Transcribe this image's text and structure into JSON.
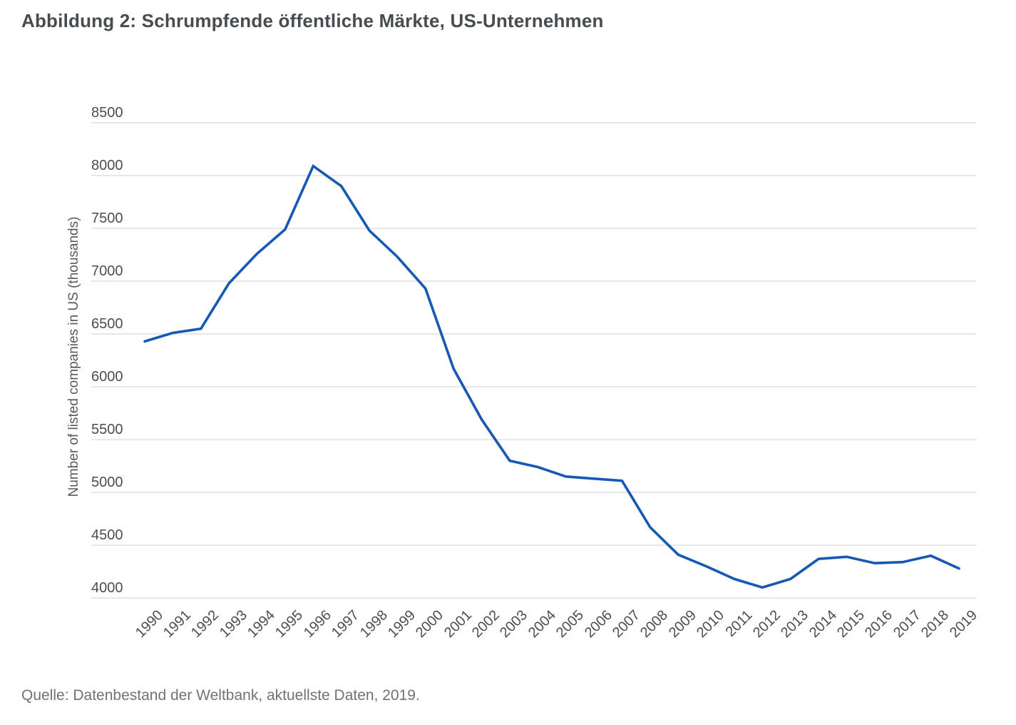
{
  "title": "Abbildung 2: Schrumpfende öffentliche Märkte, US-Unternehmen",
  "source": "Quelle: Datenbestand der Weltbank, aktuellste Daten, 2019.",
  "chart_data": {
    "type": "line",
    "x": [
      1990,
      1991,
      1992,
      1993,
      1994,
      1995,
      1996,
      1997,
      1998,
      1999,
      2000,
      2001,
      2002,
      2003,
      2004,
      2005,
      2006,
      2007,
      2008,
      2009,
      2010,
      2011,
      2012,
      2013,
      2014,
      2015,
      2016,
      2017,
      2018,
      2019
    ],
    "series": [
      {
        "name": "Number of listed companies in US",
        "values": [
          6430,
          6510,
          6550,
          6980,
          7260,
          7490,
          8090,
          7900,
          7480,
          7230,
          6930,
          6170,
          5690,
          5300,
          5240,
          5150,
          5130,
          5110,
          4670,
          4410,
          4300,
          4180,
          4100,
          4180,
          4370,
          4390,
          4330,
          4340,
          4400,
          4280
        ]
      }
    ],
    "title": "",
    "xlabel": "",
    "ylabel": "Number of listed companies in US (thousands)",
    "ylim": [
      4000,
      8500
    ],
    "yticks": [
      4000,
      4500,
      5000,
      5500,
      6000,
      6500,
      7000,
      7500,
      8000,
      8500
    ],
    "grid": "horizontal",
    "legend_position": "none",
    "line_color": "#1659b5",
    "grid_color": "#d9d9d9"
  }
}
